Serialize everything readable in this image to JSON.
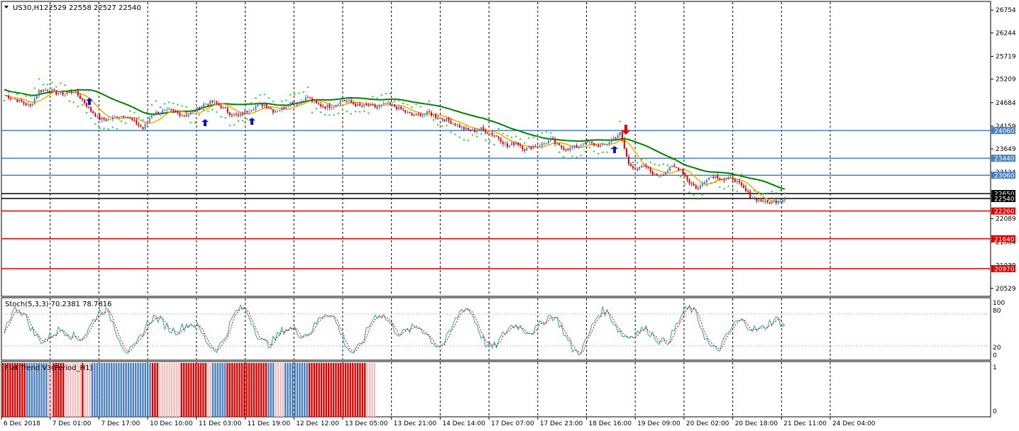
{
  "header": {
    "symbol": "US30,H1",
    "ohlc": "22529 22558 22527 22540",
    "menu_icon": "triangle-down-icon"
  },
  "chart_data": {
    "type": "candlestick",
    "ylim": [
      20400,
      26900
    ],
    "y_ticks": [
      26754,
      26244,
      25719,
      25209,
      24684,
      24159,
      23649,
      23124,
      22599,
      22089,
      21564,
      21039,
      20529
    ],
    "x_ticks": [
      "6 Dec 2018",
      "7 Dec 01:00",
      "7 Dec 17:00",
      "10 Dec 10:00",
      "11 Dec 03:00",
      "11 Dec 19:00",
      "12 Dec 12:00",
      "13 Dec 05:00",
      "13 Dec 21:00",
      "14 Dec 14:00",
      "17 Dec 07:00",
      "17 Dec 23:00",
      "18 Dec 16:00",
      "19 Dec 09:00",
      "20 Dec 02:00",
      "20 Dec 18:00",
      "21 Dec 11:00",
      "24 Dec 04:00"
    ],
    "close_path": [
      24850,
      24780,
      24700,
      24600,
      24950,
      24980,
      24900,
      24880,
      24950,
      24750,
      24500,
      24320,
      24300,
      24380,
      24400,
      24250,
      24100,
      24420,
      24480,
      24500,
      24450,
      24400,
      24500,
      24650,
      24700,
      24600,
      24450,
      24380,
      24500,
      24600,
      24650,
      24500,
      24550,
      24680,
      24700,
      24800,
      24650,
      24600,
      24620,
      24750,
      24680,
      24600,
      24620,
      24580,
      24650,
      24600,
      24500,
      24400,
      24420,
      24450,
      24350,
      24300,
      24200,
      24100,
      24050,
      24100,
      24000,
      23900,
      23700,
      23800,
      23650,
      23700,
      23750,
      23850,
      23700,
      23650,
      23700,
      23800,
      23750,
      23700,
      23850,
      24000,
      23300,
      23200,
      23250,
      23050,
      23100,
      23250,
      23200,
      22900,
      22750,
      23000,
      23050,
      22950,
      23000,
      22800,
      22600,
      22500,
      22450,
      22480,
      22540
    ],
    "price_levels": [
      {
        "label": "24060",
        "value": 24060,
        "color": "#4a7fc1"
      },
      {
        "label": "23440",
        "value": 23440,
        "color": "#4a7fc1"
      },
      {
        "label": "23060",
        "value": 23060,
        "color": "#4a7fc1"
      },
      {
        "label": "22650",
        "value": 22650,
        "color": "#000000"
      },
      {
        "label": "22540",
        "value": 22540,
        "color": "#000000"
      },
      {
        "label": "22260",
        "value": 22260,
        "color": "#e00000"
      },
      {
        "label": "21640",
        "value": 21640,
        "color": "#e00000"
      },
      {
        "label": "20970",
        "value": 20970,
        "color": "#e00000"
      }
    ],
    "colors": {
      "up_candle": "#4a7fc1",
      "down_candle": "#e00000",
      "ma_slow": "#008000",
      "ma_fast": "#ffa500",
      "psar": "#33cc33",
      "stoch_main": "#2aa7a7",
      "stoch_signal": "#e00000"
    }
  },
  "stochastic": {
    "label": "Stoch(5,3,3) 70.2381 78.7816",
    "levels": [
      "100",
      "80",
      "20",
      "0"
    ]
  },
  "flat_trend": {
    "label": "Flat Trend V3(Period_H1)",
    "levels": [
      "1",
      "0"
    ],
    "segments": [
      {
        "color": "#e00000",
        "count": 10
      },
      {
        "color": "#4a7fc1",
        "count": 9
      },
      {
        "color": "#f0c0c0",
        "count": 2
      },
      {
        "color": "#e00000",
        "count": 5
      },
      {
        "color": "#f0c0c0",
        "count": 7
      },
      {
        "color": "#e00000",
        "count": 1
      },
      {
        "color": "#f0c0c0",
        "count": 3
      },
      {
        "color": "#4a7fc1",
        "count": 25
      },
      {
        "color": "#e00000",
        "count": 3
      },
      {
        "color": "#f0c0c0",
        "count": 9
      },
      {
        "color": "#e00000",
        "count": 11
      },
      {
        "color": "#f0c0c0",
        "count": 2
      },
      {
        "color": "#4a7fc1",
        "count": 6
      },
      {
        "color": "#e00000",
        "count": 17
      },
      {
        "color": "#4a7fc1",
        "count": 3
      },
      {
        "color": "#f0c0c0",
        "count": 4
      },
      {
        "color": "#4a7fc1",
        "count": 10
      },
      {
        "color": "#e00000",
        "count": 4
      },
      {
        "color": "#e00000",
        "count": 10
      },
      {
        "color": "#e00000",
        "count": 4
      },
      {
        "color": "#e00000",
        "count": 6
      },
      {
        "color": "#f0c0c0",
        "count": 4
      }
    ]
  }
}
